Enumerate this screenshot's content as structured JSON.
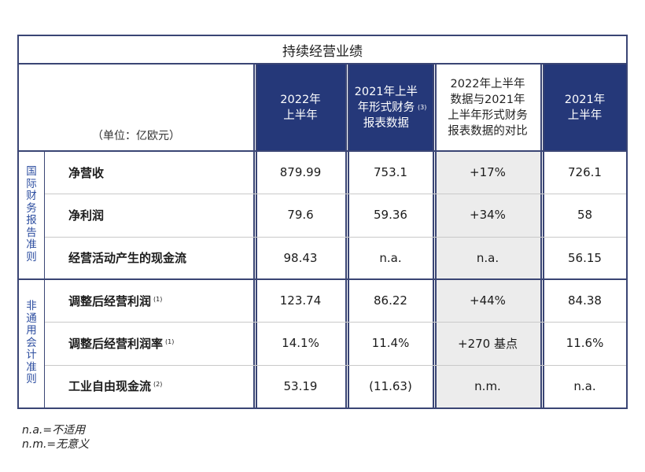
{
  "title": "持续经营业绩",
  "unit_label": "（单位：亿欧元）",
  "columns": [
    {
      "label": "2022年\n上半年",
      "style": "dark"
    },
    {
      "label": "2021年上半\n年形式财务\n报表数据",
      "note": "(3)",
      "style": "dark"
    },
    {
      "label": "2022年上半年\n数据与2021年\n上半年形式财务\n报表数据的对比",
      "style": "light"
    },
    {
      "label": "2021年\n上半年",
      "style": "dark"
    }
  ],
  "groups": [
    {
      "name": "国际财务报告准则",
      "rows": [
        {
          "label": "净营收",
          "note": "",
          "values": [
            "879.99",
            "753.1",
            "+17%",
            "726.1"
          ]
        },
        {
          "label": "净利润",
          "note": "",
          "values": [
            "79.6",
            "59.36",
            "+34%",
            "58"
          ]
        },
        {
          "label": "经营活动产生的现金流",
          "note": "",
          "values": [
            "98.43",
            "n.a.",
            "n.a.",
            "56.15"
          ]
        }
      ]
    },
    {
      "name": "非通用会计准则",
      "rows": [
        {
          "label": "调整后经营利润",
          "note": "(1)",
          "values": [
            "123.74",
            "86.22",
            "+44%",
            "84.38"
          ]
        },
        {
          "label": "调整后经营利润率",
          "note": "(1)",
          "values": [
            "14.1%",
            "11.4%",
            "+270 基点",
            "11.6%"
          ]
        },
        {
          "label": "工业自由现金流",
          "note": "(2)",
          "values": [
            "53.19",
            "(11.63)",
            "n.m.",
            "n.a."
          ]
        }
      ]
    }
  ],
  "footnotes": [
    "n.a.=不适用",
    "n.m.=无意义"
  ],
  "colors": {
    "header_bg": "#253879",
    "border": "#3a4574",
    "group_label": "#2d4ea0",
    "compare_bg": "#ececec"
  }
}
